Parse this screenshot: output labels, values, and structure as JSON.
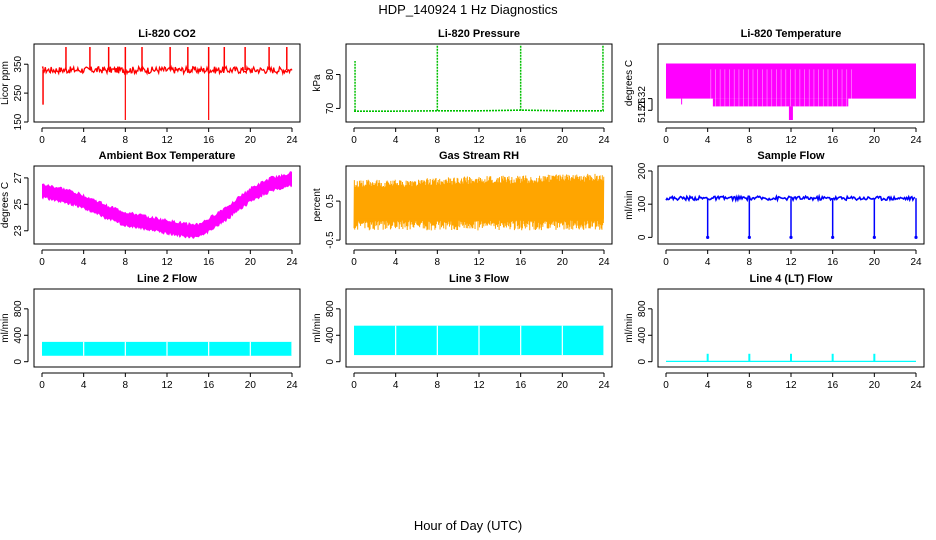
{
  "figure": {
    "title": "HDP_140924 1 Hz Diagnostics",
    "xlabel": "Hour of Day (UTC)"
  },
  "chart_data": [
    {
      "type": "line",
      "title": "Li-820 CO2",
      "ylabel": "Licor ppm",
      "color": "#ff0000",
      "xlim": [
        0,
        24
      ],
      "ylim": [
        150,
        420
      ],
      "xticks": [
        0,
        4,
        8,
        12,
        16,
        20,
        24
      ],
      "yticks": [
        150,
        250,
        350
      ],
      "series": [
        {
          "name": "CO2",
          "x": [
            0,
            0.1,
            0.2,
            2,
            4,
            6,
            8,
            10,
            12,
            14,
            16,
            18,
            20,
            22,
            24
          ],
          "y": [
            330,
            210,
            330,
            330,
            330,
            330,
            330,
            330,
            330,
            330,
            330,
            330,
            330,
            330,
            330
          ]
        }
      ],
      "spikes_high": [
        2.3,
        4.6,
        6.4,
        8.0,
        9.6,
        12.3,
        14.0,
        16.0,
        17.5,
        19.5,
        21.8,
        23.5
      ],
      "spikes_low": [
        8.0,
        16.0
      ]
    },
    {
      "type": "line",
      "title": "Li-820 Pressure",
      "ylabel": "kPa",
      "color": "#00c000",
      "xlim": [
        0,
        24
      ],
      "ylim": [
        66,
        89
      ],
      "xticks": [
        0,
        4,
        8,
        12,
        16,
        20,
        24
      ],
      "yticks": [
        70,
        80
      ],
      "series": [
        {
          "name": "Pressure",
          "x": [
            0,
            4,
            8,
            12,
            16,
            20,
            24
          ],
          "y": [
            69.2,
            69.2,
            69.3,
            69.3,
            69.5,
            69.3,
            69.3
          ]
        }
      ],
      "spikes_high": [
        0.1,
        8.0,
        16.0,
        23.9
      ]
    },
    {
      "type": "area",
      "title": "Li-820 Temperature",
      "ylabel": "degrees C",
      "color": "#ff00ff",
      "xlim": [
        0,
        24
      ],
      "ylim": [
        51.2,
        51.6
      ],
      "xticks": [
        0,
        4,
        8,
        12,
        16,
        20,
        24
      ],
      "yticks": [
        51.26,
        51.32
      ],
      "series": [
        {
          "name": "Temperature",
          "x": [
            0,
            4.5,
            8,
            12,
            16,
            17.5,
            24
          ],
          "y_low": [
            51.32,
            51.32,
            51.28,
            51.28,
            51.28,
            51.32,
            51.32
          ],
          "y_high": [
            51.5,
            51.5,
            51.5,
            51.5,
            51.5,
            51.5,
            51.5
          ]
        }
      ]
    },
    {
      "type": "area",
      "title": "Ambient Box Temperature",
      "ylabel": "degrees C",
      "color": "#ff00ff",
      "xlim": [
        0,
        24
      ],
      "ylim": [
        22,
        27.9
      ],
      "xticks": [
        0,
        4,
        8,
        12,
        16,
        20,
        24
      ],
      "yticks": [
        23,
        25,
        27
      ],
      "series": [
        {
          "name": "Ambient",
          "x": [
            0,
            2,
            4,
            6,
            8,
            10,
            12,
            14,
            15,
            16,
            18,
            20,
            22,
            24
          ],
          "y": [
            26.0,
            25.7,
            25.2,
            24.5,
            23.9,
            23.6,
            23.3,
            23.0,
            23.0,
            23.4,
            24.5,
            25.7,
            26.5,
            26.9
          ]
        }
      ]
    },
    {
      "type": "area",
      "title": "Gas Stream RH",
      "ylabel": "percent",
      "color": "#ffa500",
      "xlim": [
        0,
        24
      ],
      "ylim": [
        -0.6,
        1.4
      ],
      "xticks": [
        0,
        4,
        8,
        12,
        16,
        20,
        24
      ],
      "yticks": [
        -0.5,
        0.5
      ],
      "series": [
        {
          "name": "RH",
          "x": [
            0,
            4,
            8,
            12,
            16,
            20,
            24
          ],
          "y_low": [
            0.0,
            0.0,
            0.0,
            0.0,
            0.0,
            0.0,
            0.0
          ],
          "y_high": [
            0.85,
            0.85,
            0.9,
            0.95,
            0.95,
            1.0,
            1.0
          ]
        }
      ]
    },
    {
      "type": "line",
      "title": "Sample Flow",
      "ylabel": "ml/min",
      "color": "#0000ff",
      "xlim": [
        0,
        24
      ],
      "ylim": [
        -20,
        215
      ],
      "xticks": [
        0,
        4,
        8,
        12,
        16,
        20,
        24
      ],
      "yticks": [
        0,
        100,
        200
      ],
      "series": [
        {
          "name": "Sample Flow",
          "x": [
            0,
            4,
            8,
            12,
            16,
            20,
            24
          ],
          "y": [
            118,
            118,
            118,
            118,
            118,
            118,
            118
          ]
        }
      ],
      "dips": [
        4.0,
        8.0,
        12.0,
        16.0,
        20.0,
        24.0
      ]
    },
    {
      "type": "area",
      "title": "Line 2 Flow",
      "ylabel": "ml/min",
      "color": "#00ffff",
      "xlim": [
        0,
        24
      ],
      "ylim": [
        -80,
        1100
      ],
      "xticks": [
        0,
        4,
        8,
        12,
        16,
        20,
        24
      ],
      "yticks": [
        0,
        400,
        800
      ],
      "series": [
        {
          "name": "Line 2",
          "x": [
            0,
            24
          ],
          "y_low": [
            90,
            90
          ],
          "y_high": [
            300,
            300
          ]
        }
      ],
      "gaps": [
        4.0,
        8.0,
        12.0,
        16.0,
        20.0,
        24.0
      ]
    },
    {
      "type": "area",
      "title": "Line 3 Flow",
      "ylabel": "ml/min",
      "color": "#00ffff",
      "xlim": [
        0,
        24
      ],
      "ylim": [
        -80,
        1100
      ],
      "xticks": [
        0,
        4,
        8,
        12,
        16,
        20,
        24
      ],
      "yticks": [
        0,
        400,
        800
      ],
      "series": [
        {
          "name": "Line 3",
          "x": [
            0,
            24
          ],
          "y_low": [
            100,
            100
          ],
          "y_high": [
            545,
            545
          ]
        }
      ],
      "gaps": [
        4.0,
        8.0,
        12.0,
        16.0,
        20.0,
        24.0
      ]
    },
    {
      "type": "line",
      "title": "Line 4 (LT) Flow",
      "ylabel": "ml/min",
      "color": "#00ffff",
      "xlim": [
        0,
        24
      ],
      "ylim": [
        -80,
        1100
      ],
      "xticks": [
        0,
        4,
        8,
        12,
        16,
        20,
        24
      ],
      "yticks": [
        0,
        400,
        800
      ],
      "series": [
        {
          "name": "Line 4",
          "x": [
            0,
            24
          ],
          "y": [
            5,
            5
          ]
        }
      ],
      "spikes_high": [
        4.0,
        8.0,
        12.0,
        16.0,
        20.0
      ],
      "spike_value": 120
    }
  ]
}
